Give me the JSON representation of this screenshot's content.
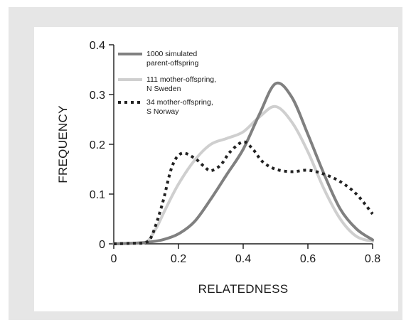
{
  "chart_data": {
    "type": "line",
    "xlabel": "RELATEDNESS",
    "ylabel": "FREQUENCY",
    "xlim": [
      0,
      0.8
    ],
    "ylim": [
      0,
      0.4
    ],
    "xticks": [
      0,
      0.2,
      0.4,
      0.6,
      0.8
    ],
    "xtick_labels": [
      "0",
      "0.2",
      "0.4",
      "0.6",
      "0.8"
    ],
    "yticks": [
      0,
      0.1,
      0.2,
      0.3,
      0.4
    ],
    "ytick_labels": [
      "0",
      "0.1",
      "0.2",
      "0.3",
      "0.4"
    ],
    "grid": false,
    "legend_position": "top-left",
    "series": [
      {
        "name_lines": [
          "1000 simulated",
          "parent-offspring"
        ],
        "color": "#808080",
        "style": "solid",
        "points": [
          [
            0,
            0
          ],
          [
            0.05,
            0.001
          ],
          [
            0.1,
            0.003
          ],
          [
            0.15,
            0.008
          ],
          [
            0.2,
            0.02
          ],
          [
            0.25,
            0.045
          ],
          [
            0.3,
            0.09
          ],
          [
            0.35,
            0.14
          ],
          [
            0.4,
            0.19
          ],
          [
            0.45,
            0.26
          ],
          [
            0.5,
            0.322
          ],
          [
            0.55,
            0.295
          ],
          [
            0.6,
            0.22
          ],
          [
            0.65,
            0.14
          ],
          [
            0.7,
            0.07
          ],
          [
            0.75,
            0.03
          ],
          [
            0.8,
            0.008
          ]
        ]
      },
      {
        "name_lines": [
          "111 mother-offspring,",
          "N Sweden"
        ],
        "color": "#cfcfcf",
        "style": "solid",
        "points": [
          [
            0,
            0
          ],
          [
            0.05,
            0.001
          ],
          [
            0.1,
            0.004
          ],
          [
            0.13,
            0.03
          ],
          [
            0.16,
            0.07
          ],
          [
            0.2,
            0.12
          ],
          [
            0.25,
            0.168
          ],
          [
            0.3,
            0.2
          ],
          [
            0.35,
            0.212
          ],
          [
            0.4,
            0.225
          ],
          [
            0.45,
            0.255
          ],
          [
            0.5,
            0.276
          ],
          [
            0.55,
            0.245
          ],
          [
            0.6,
            0.185
          ],
          [
            0.65,
            0.11
          ],
          [
            0.7,
            0.05
          ],
          [
            0.75,
            0.015
          ],
          [
            0.8,
            0.005
          ]
        ]
      },
      {
        "name_lines": [
          "34 mother-offspring,",
          "S Norway"
        ],
        "color": "#222222",
        "style": "dotted",
        "points": [
          [
            0,
            0
          ],
          [
            0.05,
            0.001
          ],
          [
            0.1,
            0.003
          ],
          [
            0.12,
            0.02
          ],
          [
            0.15,
            0.08
          ],
          [
            0.18,
            0.155
          ],
          [
            0.21,
            0.182
          ],
          [
            0.25,
            0.172
          ],
          [
            0.28,
            0.155
          ],
          [
            0.3,
            0.147
          ],
          [
            0.33,
            0.158
          ],
          [
            0.36,
            0.185
          ],
          [
            0.4,
            0.205
          ],
          [
            0.43,
            0.19
          ],
          [
            0.46,
            0.165
          ],
          [
            0.5,
            0.15
          ],
          [
            0.55,
            0.145
          ],
          [
            0.6,
            0.148
          ],
          [
            0.65,
            0.14
          ],
          [
            0.7,
            0.125
          ],
          [
            0.75,
            0.1
          ],
          [
            0.8,
            0.06
          ]
        ]
      }
    ]
  }
}
